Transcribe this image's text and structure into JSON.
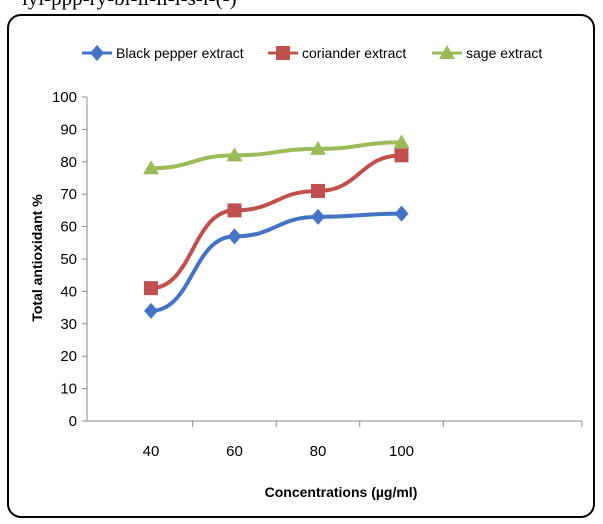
{
  "caption_fragment": "lyl-ppp-ry-bl-ll-ll-l-s-l-(-)",
  "chart_data": {
    "type": "line",
    "title": "",
    "xlabel": "Concentrations (µg/ml)",
    "ylabel": "Total antioxidant %",
    "x": [
      40,
      60,
      80,
      100
    ],
    "x_tick_labels": [
      "40",
      "60",
      "80",
      "100"
    ],
    "ylim": [
      0,
      100
    ],
    "y_ticks": [
      0,
      10,
      20,
      30,
      40,
      50,
      60,
      70,
      80,
      90,
      100
    ],
    "y_tick_labels": [
      "0",
      "10",
      "20",
      "30",
      "40",
      "50",
      "60",
      "70",
      "80",
      "90",
      "100"
    ],
    "grid": false,
    "legend_position": "top",
    "series": [
      {
        "name": "Black pepper extract",
        "values": [
          34,
          57,
          63,
          64
        ],
        "color": "#4472C4",
        "marker": "diamond"
      },
      {
        "name": "coriander extract",
        "values": [
          41,
          65,
          71,
          82
        ],
        "color": "#C0504D",
        "marker": "square"
      },
      {
        "name": "sage extract",
        "values": [
          78,
          82,
          84,
          86
        ],
        "color": "#9BBB59",
        "marker": "triangle"
      }
    ]
  }
}
